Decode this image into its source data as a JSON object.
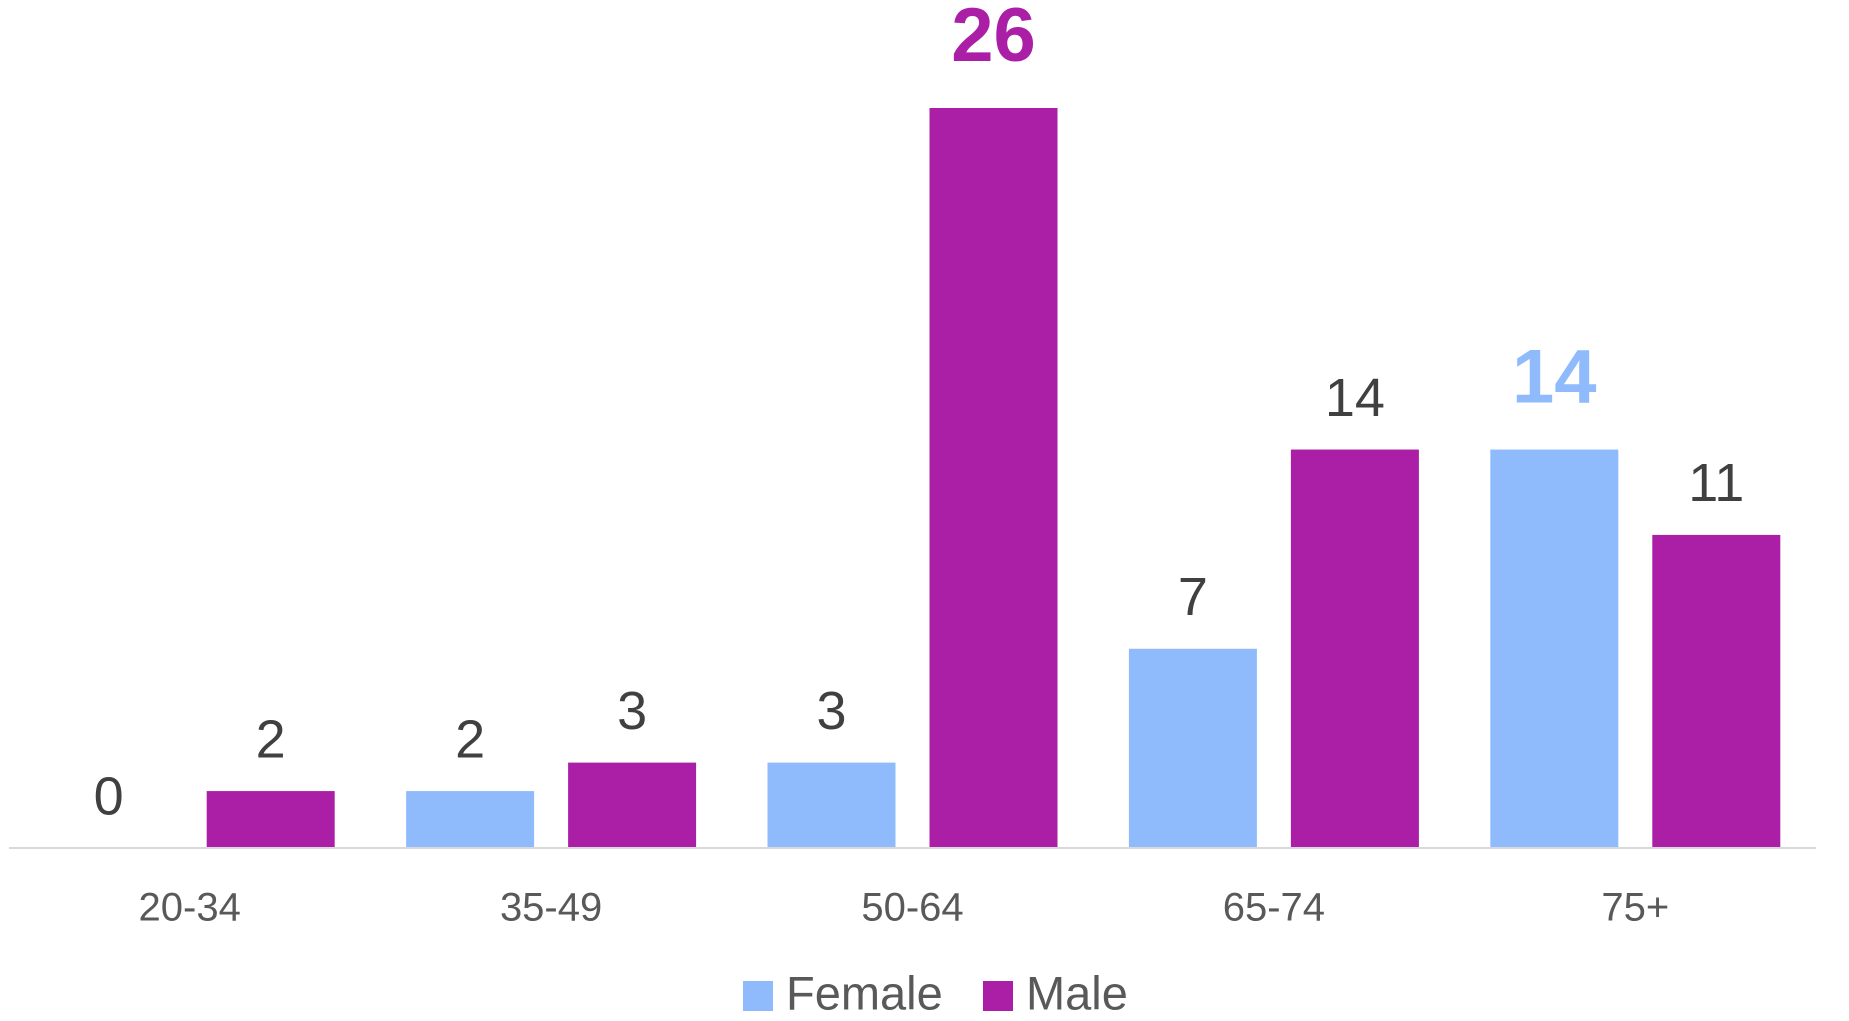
{
  "chart_data": {
    "type": "bar",
    "categories": [
      "20-34",
      "35-49",
      "50-64",
      "65-74",
      "75+"
    ],
    "series": [
      {
        "name": "Female",
        "color": "#8fbbfc",
        "values": [
          0,
          2,
          3,
          7,
          14
        ]
      },
      {
        "name": "Male",
        "color": "#aa1fa6",
        "values": [
          2,
          3,
          26,
          14,
          11
        ]
      }
    ],
    "ylim": [
      0,
      26
    ],
    "highlight": [
      {
        "series": 1,
        "index": 2
      },
      {
        "series": 0,
        "index": 4
      }
    ],
    "legend": "bottom"
  }
}
